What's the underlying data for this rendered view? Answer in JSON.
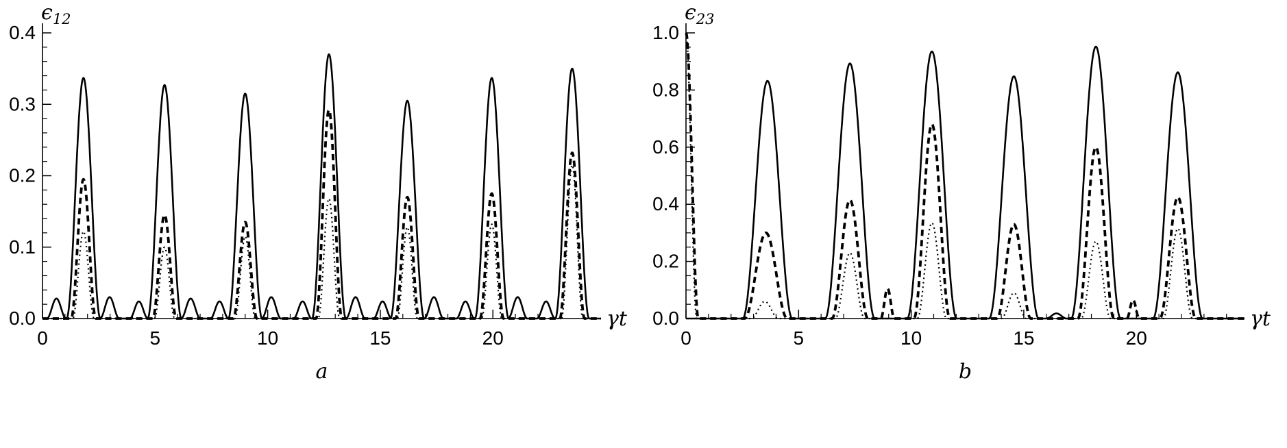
{
  "figure": {
    "background": "#ffffff",
    "ink": "#000000"
  },
  "chart_data": [
    {
      "id": "a",
      "type": "line",
      "caption": "a",
      "xlabel": "γt",
      "ylabel_base": "ϵ",
      "ylabel_sub": "12",
      "xlim": [
        0,
        24.8
      ],
      "ylim": [
        0,
        0.4
      ],
      "xticks": [
        0,
        5,
        10,
        15,
        20
      ],
      "xtick_labels": [
        "0",
        "5",
        "10",
        "15",
        "20"
      ],
      "yticks": [
        0,
        0.1,
        0.2,
        0.3,
        0.4
      ],
      "ytick_labels": [
        "0.0",
        "0.1",
        "0.2",
        "0.3",
        "0.4"
      ],
      "x_minor_step": 1,
      "y_minor_step": 0.02,
      "grid": false,
      "legend": null,
      "series": [
        {
          "name": "dotted",
          "style": "dotted",
          "peaks": [
            [
              1.82,
              0.122,
              0.95
            ],
            [
              5.42,
              0.1,
              0.9
            ],
            [
              9.0,
              0.115,
              0.9
            ],
            [
              12.72,
              0.168,
              0.95
            ],
            [
              16.2,
              0.128,
              0.9
            ],
            [
              19.95,
              0.132,
              0.9
            ],
            [
              23.52,
              0.215,
              0.95
            ]
          ]
        },
        {
          "name": "dashed",
          "style": "dashed",
          "peaks": [
            [
              1.82,
              0.195,
              1.1
            ],
            [
              5.42,
              0.145,
              1.05
            ],
            [
              9.0,
              0.135,
              1.05
            ],
            [
              12.72,
              0.292,
              1.15
            ],
            [
              16.2,
              0.17,
              1.05
            ],
            [
              19.95,
              0.175,
              1.05
            ],
            [
              23.52,
              0.232,
              1.1
            ]
          ]
        },
        {
          "name": "solid",
          "style": "solid",
          "peaks": [
            [
              1.82,
              0.337,
              1.5
            ],
            [
              5.42,
              0.327,
              1.5
            ],
            [
              9.0,
              0.315,
              1.5
            ],
            [
              12.72,
              0.37,
              1.5
            ],
            [
              16.2,
              0.305,
              1.5
            ],
            [
              19.95,
              0.337,
              1.5
            ],
            [
              23.52,
              0.35,
              1.5
            ],
            [
              0.62,
              0.028,
              0.85
            ],
            [
              2.98,
              0.03,
              0.85
            ],
            [
              4.28,
              0.024,
              0.8
            ],
            [
              6.58,
              0.028,
              0.85
            ],
            [
              7.86,
              0.024,
              0.8
            ],
            [
              10.16,
              0.03,
              0.85
            ],
            [
              11.55,
              0.024,
              0.8
            ],
            [
              13.9,
              0.03,
              0.85
            ],
            [
              15.1,
              0.024,
              0.8
            ],
            [
              17.38,
              0.03,
              0.85
            ],
            [
              18.78,
              0.024,
              0.8
            ],
            [
              21.1,
              0.03,
              0.85
            ],
            [
              22.36,
              0.024,
              0.8
            ]
          ]
        }
      ]
    },
    {
      "id": "b",
      "type": "line",
      "caption": "b",
      "xlabel": "γt",
      "ylabel_base": "ϵ",
      "ylabel_sub": "23",
      "xlim": [
        0,
        24.8
      ],
      "ylim": [
        0,
        1.0
      ],
      "xticks": [
        0,
        5,
        10,
        15,
        20
      ],
      "xtick_labels": [
        "0",
        "5",
        "10",
        "15",
        "20"
      ],
      "yticks": [
        0,
        0.2,
        0.4,
        0.6,
        0.8,
        1.0
      ],
      "ytick_labels": [
        "0.0",
        "0.2",
        "0.4",
        "0.6",
        "0.8",
        "1.0"
      ],
      "x_minor_step": 1,
      "y_minor_step": 0.05,
      "grid": false,
      "legend": null,
      "series": [
        {
          "name": "dotted",
          "style": "dotted",
          "peaks": [
            [
              0,
              1.0,
              0.95
            ],
            [
              3.5,
              0.06,
              1.2
            ],
            [
              7.28,
              0.23,
              1.3
            ],
            [
              10.92,
              0.335,
              1.3
            ],
            [
              14.56,
              0.09,
              1.1
            ],
            [
              18.2,
              0.27,
              1.3
            ],
            [
              21.84,
              0.315,
              1.3
            ]
          ]
        },
        {
          "name": "dashed",
          "style": "dashed",
          "peaks": [
            [
              0,
              1.0,
              1.1
            ],
            [
              3.55,
              0.3,
              1.9
            ],
            [
              7.28,
              0.415,
              1.6
            ],
            [
              10.92,
              0.68,
              1.6
            ],
            [
              14.56,
              0.33,
              1.5
            ],
            [
              18.2,
              0.6,
              1.6
            ],
            [
              21.84,
              0.425,
              1.6
            ],
            [
              8.95,
              0.105,
              0.6
            ],
            [
              19.85,
              0.065,
              0.55
            ]
          ]
        },
        {
          "name": "solid",
          "style": "solid",
          "peaks": [
            [
              3.62,
              0.832,
              2.2
            ],
            [
              7.28,
              0.893,
              2.2
            ],
            [
              10.92,
              0.935,
              2.2
            ],
            [
              14.56,
              0.848,
              2.2
            ],
            [
              18.2,
              0.952,
              2.2
            ],
            [
              21.84,
              0.862,
              2.2
            ],
            [
              16.45,
              0.018,
              0.9
            ]
          ]
        }
      ]
    }
  ]
}
